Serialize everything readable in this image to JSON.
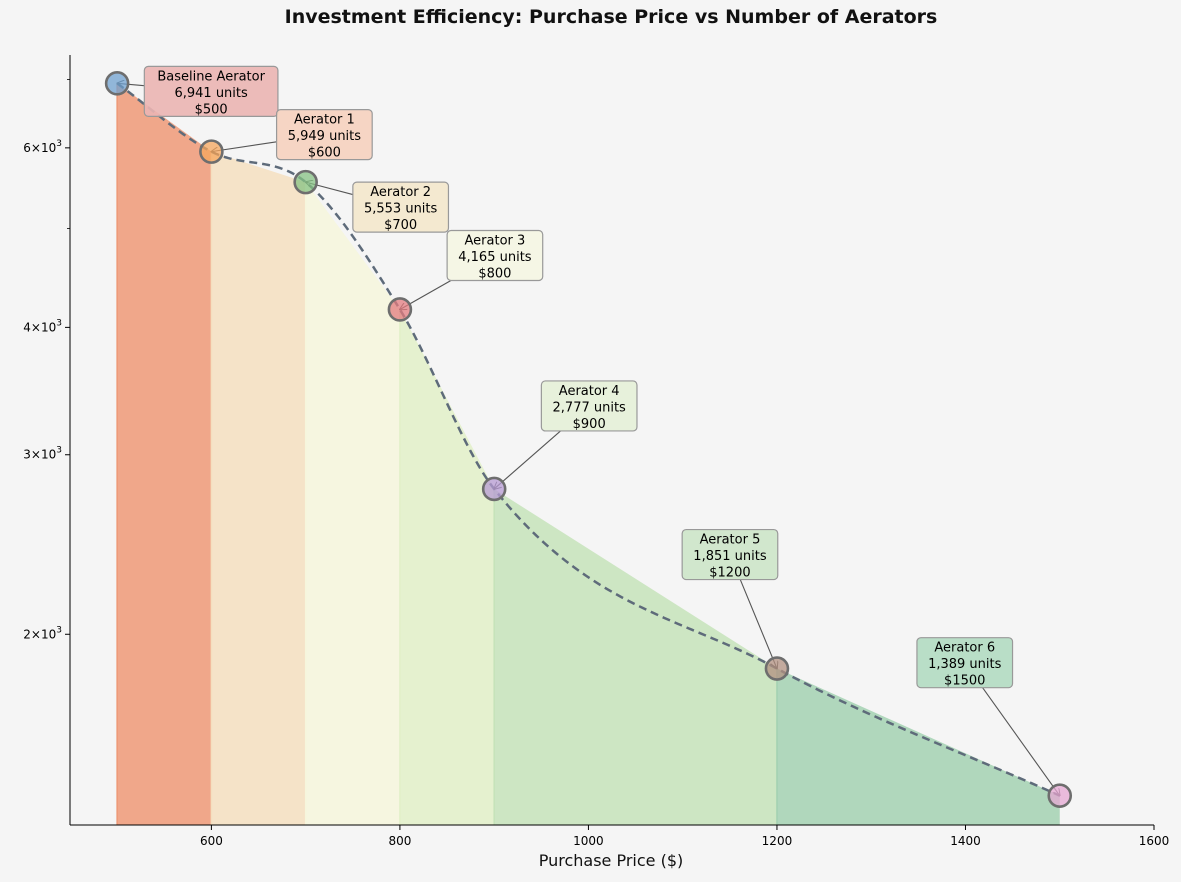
{
  "chart_data": {
    "type": "area",
    "title": "Investment Efficiency: Purchase Price vs Number of Aerators",
    "xlabel": "Purchase Price ($)",
    "ylabel": "",
    "xlim": [
      450,
      1600
    ],
    "ylim": [
      1300,
      7400
    ],
    "yscale": "log",
    "x_ticks": [
      600,
      800,
      1000,
      1200,
      1400,
      1600
    ],
    "y_ticks": [
      {
        "value": 2000,
        "base": "2×10",
        "exp": "3"
      },
      {
        "value": 3000,
        "base": "3×10",
        "exp": "3"
      },
      {
        "value": 4000,
        "base": "4×10",
        "exp": "3"
      },
      {
        "value": 6000,
        "base": "6×10",
        "exp": "3"
      }
    ],
    "y_minor_ticks": [
      5000,
      7000
    ],
    "grid": false,
    "points": [
      {
        "name": "Baseline Aerator",
        "x": 500,
        "y": 6941,
        "units_label": "6,941 units",
        "price_label": "$500",
        "marker_color": "#6fa0cf",
        "fill_color": "#ee9977",
        "box_color": "#ebb5b3"
      },
      {
        "name": "Aerator 1",
        "x": 600,
        "y": 5949,
        "units_label": "5,949 units",
        "price_label": "$600",
        "marker_color": "#f6a55c",
        "fill_color": "#f4dfbf",
        "box_color": "#f6d2bf"
      },
      {
        "name": "Aerator 2",
        "x": 700,
        "y": 5553,
        "units_label": "5,553 units",
        "price_label": "$700",
        "marker_color": "#85c183",
        "fill_color": "#f6f6dc",
        "box_color": "#f4e8cc"
      },
      {
        "name": "Aerator 3",
        "x": 800,
        "y": 4165,
        "units_label": "4,165 units",
        "price_label": "$800",
        "marker_color": "#e17b7f",
        "fill_color": "#e2f0c8",
        "box_color": "#f5f6e3"
      },
      {
        "name": "Aerator 4",
        "x": 900,
        "y": 2777,
        "units_label": "2,777 units",
        "price_label": "$900",
        "marker_color": "#b59ad3",
        "fill_color": "#c6e3ba",
        "box_color": "#e6f1d8"
      },
      {
        "name": "Aerator 5",
        "x": 1200,
        "y": 1851,
        "units_label": "1,851 units",
        "price_label": "$1200",
        "marker_color": "#b19080",
        "fill_color": "#a3d1b2",
        "box_color": "#cde6c9"
      },
      {
        "name": "Aerator 6",
        "x": 1500,
        "y": 1389,
        "units_label": "1,389 units",
        "price_label": "$1500",
        "marker_color": "#e5a7d3",
        "fill_color": "#a3d1b2",
        "box_color": "#b2dcc2"
      }
    ],
    "trend_line": {
      "style": "dashed",
      "color": "#5e6b7a"
    }
  }
}
